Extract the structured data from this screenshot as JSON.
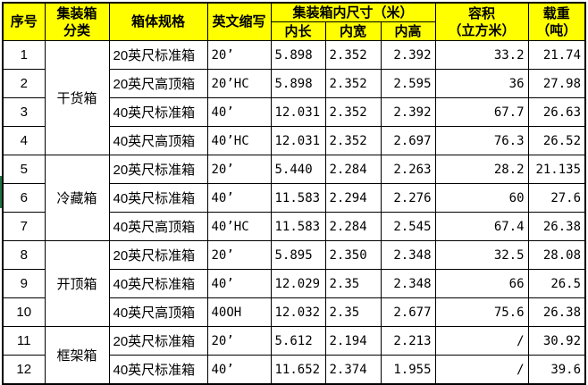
{
  "table": {
    "headers": {
      "serial": "序号",
      "category_lines": [
        "集装箱",
        "分类"
      ],
      "spec": "箱体规格",
      "code": "英文缩写",
      "inner_dims": "集装箱内尺寸（米）",
      "inner_length": "内长",
      "inner_width": "内宽",
      "inner_height": "内高",
      "volume_lines": [
        "容积",
        "（立方米）"
      ],
      "load_lines": [
        "载重",
        "（吨）"
      ]
    },
    "groups": [
      {
        "label": "干货箱",
        "start": 0,
        "span": 4
      },
      {
        "label": "冷藏箱",
        "start": 4,
        "span": 3
      },
      {
        "label": "开顶箱",
        "start": 7,
        "span": 3
      },
      {
        "label": "框架箱",
        "start": 10,
        "span": 2
      }
    ],
    "rows": [
      {
        "no": "1",
        "spec": "20英尺标准箱",
        "code": "20’",
        "length": "5.898",
        "width": "2.352",
        "height": "2.392",
        "volume": "33.2",
        "load": "21.74"
      },
      {
        "no": "2",
        "spec": "20英尺高顶箱",
        "code": "20’HC",
        "length": "5.898",
        "width": "2.352",
        "height": "2.595",
        "volume": "36",
        "load": "27.98"
      },
      {
        "no": "3",
        "spec": "40英尺标准箱",
        "code": "40’",
        "length": "12.031",
        "width": "2.352",
        "height": "2.392",
        "volume": "67.7",
        "load": "26.63"
      },
      {
        "no": "4",
        "spec": "40英尺高顶箱",
        "code": "40’HC",
        "length": "12.031",
        "width": "2.352",
        "height": "2.697",
        "volume": "76.3",
        "load": "26.52"
      },
      {
        "no": "5",
        "spec": "20英尺标准箱",
        "code": "20’",
        "length": "5.440",
        "width": "2.284",
        "height": "2.263",
        "volume": "28.2",
        "load": "21.135"
      },
      {
        "no": "6",
        "spec": "40英尺标准箱",
        "code": "40’",
        "length": "11.583",
        "width": "2.294",
        "height": "2.276",
        "volume": "60",
        "load": "27.6"
      },
      {
        "no": "7",
        "spec": "40英尺高顶箱",
        "code": "40’HC",
        "length": "11.583",
        "width": "2.284",
        "height": "2.545",
        "volume": "67.4",
        "load": "26.38"
      },
      {
        "no": "8",
        "spec": "20英尺标准箱",
        "code": "20’",
        "length": "5.895",
        "width": "2.350",
        "height": "2.348",
        "volume": "32.5",
        "load": "28.08"
      },
      {
        "no": "9",
        "spec": "40英尺标准箱",
        "code": "40’",
        "length": "12.029",
        "width": "2.35",
        "height": "2.348",
        "volume": "66",
        "load": "26.5"
      },
      {
        "no": "10",
        "spec": "40英尺高顶箱",
        "code": "40OH",
        "length": "12.032",
        "width": "2.35",
        "height": "2.677",
        "volume": "75.6",
        "load": "26.38"
      },
      {
        "no": "11",
        "spec": "20英尺标准箱",
        "code": "20’",
        "length": "5.612",
        "width": "2.194",
        "height": "2.213",
        "volume": "/",
        "load": "30.92"
      },
      {
        "no": "12",
        "spec": "40英尺标准箱",
        "code": "40’",
        "length": "11.652",
        "width": "2.374",
        "height": "1.955",
        "volume": "/",
        "load": "39.6"
      }
    ],
    "colors": {
      "header_bg": "#ffff00",
      "grid": "#000000",
      "edge_artifact": "#217346"
    }
  }
}
